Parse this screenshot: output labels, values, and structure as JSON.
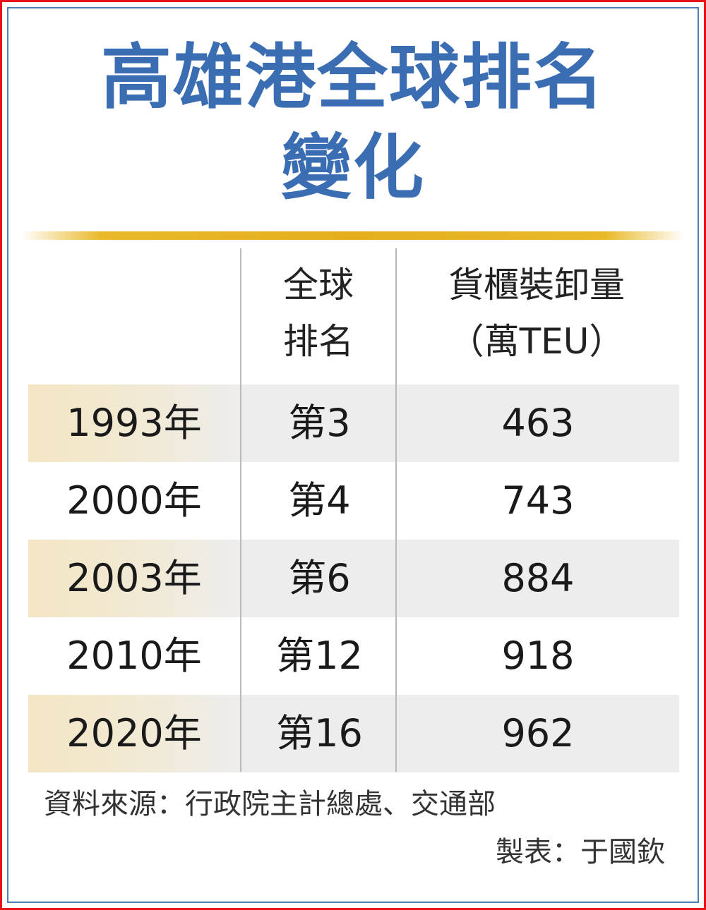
{
  "title_line1": "高雄港全球排名",
  "title_line2": "變化",
  "headers": {
    "year": "",
    "rank_line1": "全球",
    "rank_line2": "排名",
    "teu_line1": "貨櫃裝卸量",
    "teu_line2": "（萬TEU）"
  },
  "rows": [
    {
      "year": "1993年",
      "rank": "第3",
      "teu": "463"
    },
    {
      "year": "2000年",
      "rank": "第4",
      "teu": "743"
    },
    {
      "year": "2003年",
      "rank": "第6",
      "teu": "884"
    },
    {
      "year": "2010年",
      "rank": "第12",
      "teu": "918"
    },
    {
      "year": "2020年",
      "rank": "第16",
      "teu": "962"
    }
  ],
  "source": "資料來源：行政院主計總處、交通部",
  "maker": "製表：于國欽",
  "colors": {
    "title": "#3b6db3",
    "frame_outer": "#e8141b",
    "frame_inner": "#4f7fb4",
    "gold_bar": "#e3b01c",
    "row_shade": "#ededed",
    "year_shade": "#f4e6c4"
  },
  "chart_data": {
    "type": "table",
    "title": "高雄港全球排名變化",
    "columns": [
      "",
      "全球排名",
      "貨櫃裝卸量（萬TEU）"
    ],
    "rows": [
      [
        "1993年",
        "第3",
        463
      ],
      [
        "2000年",
        "第4",
        743
      ],
      [
        "2003年",
        "第6",
        884
      ],
      [
        "2010年",
        "第12",
        918
      ],
      [
        "2020年",
        "第16",
        962
      ]
    ]
  }
}
